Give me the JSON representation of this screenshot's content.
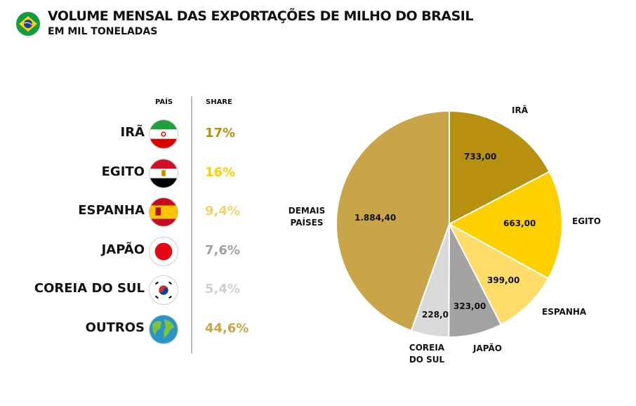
{
  "header": {
    "title": "VOLUME MENSAL DAS EXPORTAÇÕES DE MILHO DO BRASIL",
    "subtitle": "EM MIL TONELADAS",
    "flag_icon": "brazil-flag-icon"
  },
  "table": {
    "col_country": "PAÍS",
    "col_share": "SHARE",
    "rows": [
      {
        "country": "IRÃ",
        "share": "17%",
        "color": "#b8900f",
        "flag": "iran-flag-icon"
      },
      {
        "country": "EGITO",
        "share": "16%",
        "color": "#ffd000",
        "flag": "egypt-flag-icon"
      },
      {
        "country": "ESPANHA",
        "share": "9,4%",
        "color": "#f2d36a",
        "flag": "spain-flag-icon"
      },
      {
        "country": "JAPÃO",
        "share": "7,6%",
        "color": "#a3a1a1",
        "flag": "japan-flag-icon"
      },
      {
        "country": "COREIA DO SUL",
        "share": "5,4%",
        "color": "#cfcfcf",
        "flag": "south-korea-flag-icon"
      },
      {
        "country": "OUTROS",
        "share": "44,6%",
        "color": "#c8a548",
        "flag": "globe-icon"
      }
    ]
  },
  "chart_data": {
    "type": "pie",
    "start": "top",
    "direction": "clockwise",
    "slices": [
      {
        "label": "IRÃ",
        "value": 733.0,
        "value_label": "733,00",
        "color": "#b8900f"
      },
      {
        "label": "EGITO",
        "value": 663.0,
        "value_label": "663,00",
        "color": "#ffd000"
      },
      {
        "label": "ESPANHA",
        "value": 399.0,
        "value_label": "399,00",
        "color": "#ffdb6a"
      },
      {
        "label": "JAPÃO",
        "value": 323.0,
        "value_label": "323,00",
        "color": "#a3a1a1"
      },
      {
        "label": "COREIA DO SUL",
        "value": 228.0,
        "value_label": "228,0",
        "color": "#d9d9d9"
      },
      {
        "label": "DEMAIS PAÍSES",
        "value": 1884.4,
        "value_label": "1.884,40",
        "color": "#c8a548"
      }
    ]
  }
}
